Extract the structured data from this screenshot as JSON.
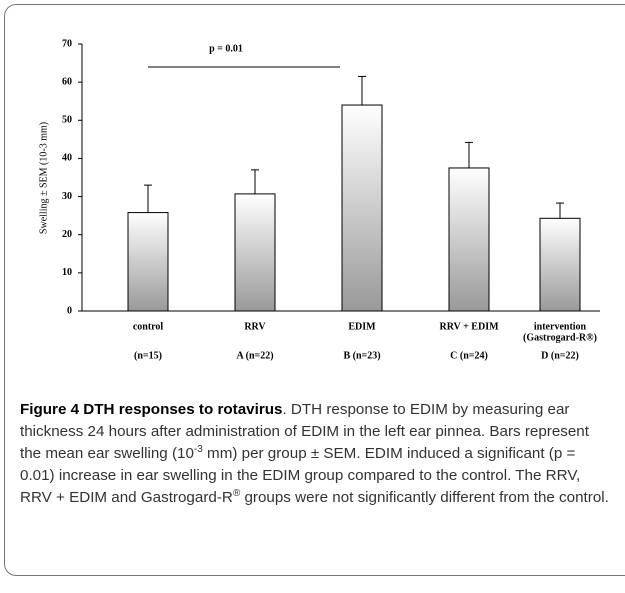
{
  "chart_data": {
    "type": "bar",
    "y_label": "Swelling ± SEM (10-3 mm)",
    "categories": [
      "control",
      "RRV",
      "EDIM",
      "RRV + EDIM",
      "intervention"
    ],
    "category_sublabels": [
      null,
      null,
      null,
      null,
      "(Gastrogard-R®)"
    ],
    "group_labels": [
      "(n=15)",
      "A (n=22)",
      "B (n=23)",
      "C (n=24)",
      "D (n=22)"
    ],
    "values": [
      25.8,
      30.7,
      54,
      37.5,
      24.3
    ],
    "errors": [
      7.2,
      6.3,
      7.5,
      6.7,
      4
    ],
    "color": "#999999",
    "ylim": [
      0,
      70
    ],
    "yticks": [
      0,
      10,
      20,
      30,
      40,
      50,
      60,
      70
    ],
    "annotation": "p = 0.01"
  },
  "caption": {
    "label": "Figure 4 DTH responses to rotavirus",
    "parts": [
      ". DTH response to EDIM by measuring ear thickness 24 hours after administration of EDIM in the left ear pinnea. Bars represent the mean ear swelling (10",
      "-3",
      " mm) per group ± SEM. EDIM induced a significant (p = 0.01) increase in ear swelling in the EDIM group compared to the control. The RRV, RRV + EDIM and Gastrogard-R",
      "®",
      " groups were not significantly different from the control."
    ]
  }
}
